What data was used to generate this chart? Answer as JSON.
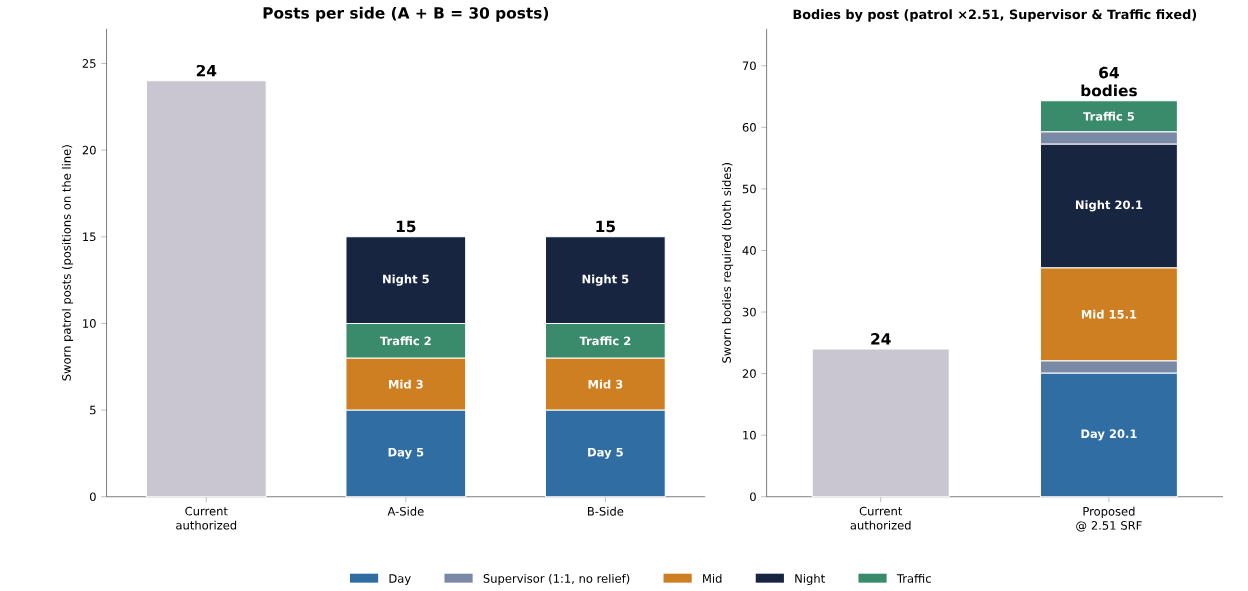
{
  "chart_data": [
    {
      "type": "bar",
      "stacked": true,
      "title": "Posts per side  (A + B = 30 posts)",
      "ylabel": "Sworn patrol posts (positions on the line)",
      "categories": [
        "Current authorized",
        "A-Side",
        "B-Side"
      ],
      "ylim": [
        0,
        27
      ],
      "yticks": [
        0,
        5,
        10,
        15,
        20,
        25
      ],
      "series": [
        {
          "color": "#c9c6d0",
          "values": [
            24,
            null,
            null
          ]
        },
        {
          "color": "#2f6da3",
          "values": [
            null,
            5,
            5
          ],
          "value_labels": [
            null,
            "Day 5",
            "Day 5"
          ]
        },
        {
          "color": "#cd7f22",
          "values": [
            null,
            3,
            3
          ],
          "value_labels": [
            null,
            "Mid 3",
            "Mid 3"
          ]
        },
        {
          "color": "#3a8a6c",
          "values": [
            null,
            2,
            2
          ],
          "value_labels": [
            null,
            "Traffic 2",
            "Traffic 2"
          ]
        },
        {
          "color": "#172540",
          "values": [
            null,
            5,
            5
          ],
          "value_labels": [
            null,
            "Night 5",
            "Night 5"
          ]
        }
      ],
      "totals": [
        "24",
        "15",
        "15"
      ]
    },
    {
      "type": "bar",
      "stacked": true,
      "title": "Bodies by post  (patrol ×2.51, Supervisor & Traffic fixed)",
      "ylabel": "Sworn bodies required (both sides)",
      "categories": [
        "Current authorized",
        "Proposed @ 2.51 SRF"
      ],
      "ylim": [
        0,
        76
      ],
      "yticks": [
        0,
        10,
        20,
        30,
        40,
        50,
        60,
        70
      ],
      "series": [
        {
          "color": "#c9c6d0",
          "values": [
            24,
            null
          ]
        },
        {
          "name": "Day",
          "color": "#2f6da3",
          "values": [
            null,
            20.1
          ],
          "value_labels": [
            null,
            "Day 20.1"
          ]
        },
        {
          "name": "Supervisor (1:1, no relief)",
          "color": "#7a8aa6",
          "values": [
            null,
            2
          ]
        },
        {
          "name": "Mid",
          "color": "#cd7f22",
          "values": [
            null,
            15.1
          ],
          "value_labels": [
            null,
            "Mid 15.1"
          ]
        },
        {
          "name": "Night",
          "color": "#172540",
          "values": [
            null,
            20.1
          ],
          "value_labels": [
            null,
            "Night 20.1"
          ]
        },
        {
          "color": "#7a8aa6",
          "values": [
            null,
            2
          ]
        },
        {
          "name": "Traffic",
          "color": "#3a8a6c",
          "values": [
            null,
            5
          ],
          "value_labels": [
            null,
            "Traffic 5"
          ]
        }
      ],
      "totals": [
        "24",
        "64 bodies"
      ],
      "legend": "bottom"
    }
  ]
}
